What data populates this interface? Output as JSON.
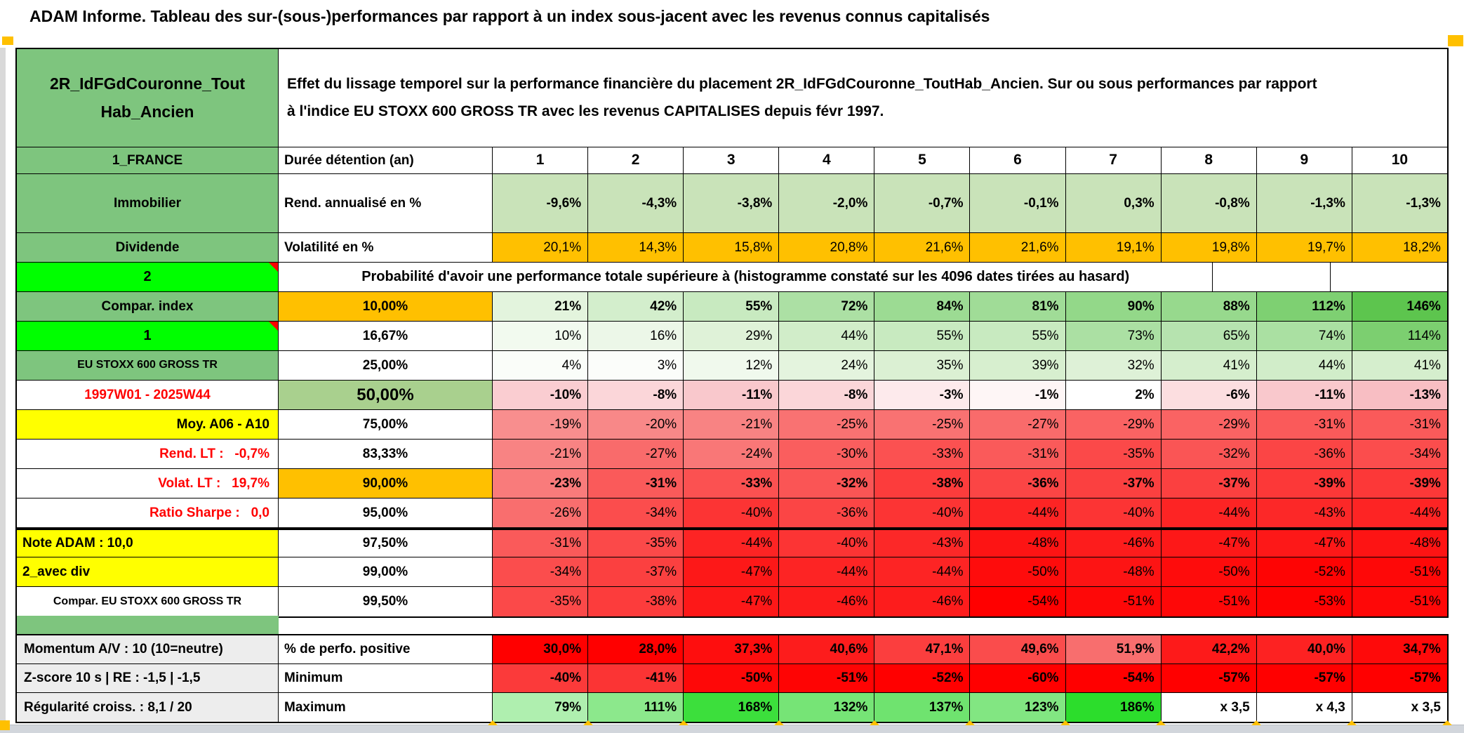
{
  "palette": {
    "header_green": "#7EC57E",
    "bright_green": "#00FF00",
    "orange": "#FFC000",
    "yellow": "#FFFF00",
    "green_50pct": "#A9D08E",
    "red_full": "#FF0000",
    "gray_label": "#EDEDED",
    "light_green_band": "#C9E3B9"
  },
  "title_bar": {
    "text": "ADAM Informe. Tableau des sur-(sous-)performances par rapport à un index sous-jacent avec les revenus connus capitalisés"
  },
  "header": {
    "name": "2R_IdFGdCouronne_ToutHab_Ancien",
    "description": "Effet du lissage temporel sur la performance financière du placement 2R_IdFGdCouronne_ToutHab_Ancien. Sur ou sous performances par rapport à l'indice EU STOXX 600 GROSS TR avec les revenus CAPITALISES depuis févr 1997."
  },
  "rows_head": {
    "label": "1_FRANCE",
    "col2": "Durée détention (an)"
  },
  "columns": [
    "1",
    "2",
    "3",
    "4",
    "5",
    "6",
    "7",
    "8",
    "9",
    "10"
  ],
  "main_rows": [
    {
      "label": "Immobilier",
      "label_class": "lab-green",
      "col2": "Rend. annualisé en %",
      "col2_class": "c2-bold-left",
      "tall": true,
      "bold": true,
      "values": [
        "-9,6%",
        "-4,3%",
        "-3,8%",
        "-2,0%",
        "-0,7%",
        "-0,1%",
        "0,3%",
        "-0,8%",
        "-1,3%",
        "-1,3%"
      ],
      "bgs": [
        "#C9E3B9",
        "#C9E3B9",
        "#C9E3B9",
        "#C9E3B9",
        "#C9E3B9",
        "#C9E3B9",
        "#C9E3B9",
        "#C9E3B9",
        "#C9E3B9",
        "#C9E3B9"
      ]
    },
    {
      "label": "Dividende",
      "label_class": "lab-green",
      "col2": "Volatilité en %",
      "col2_class": "c2-bold-left",
      "bold": false,
      "values": [
        "20,1%",
        "14,3%",
        "15,8%",
        "20,8%",
        "21,6%",
        "21,6%",
        "19,1%",
        "19,8%",
        "19,7%",
        "18,2%"
      ],
      "bgs": [
        "#FFC000",
        "#FFC000",
        "#FFC000",
        "#FFC000",
        "#FFC000",
        "#FFC000",
        "#FFC000",
        "#FFC000",
        "#FFC000",
        "#FFC000"
      ]
    },
    {
      "type": "merged",
      "label": "2",
      "label_class": "lab-bright",
      "comment_marker": true,
      "empty_tail": 2,
      "note": "Probabilité d'avoir une performance totale supérieure à (histogramme constaté sur les 4096 dates tirées au hasard)"
    },
    {
      "label": "Compar. index",
      "label_class": "lab-green",
      "col2": "10,00%",
      "col2_class": "c2-orange",
      "bold": true,
      "values": [
        "21%",
        "42%",
        "55%",
        "72%",
        "84%",
        "81%",
        "90%",
        "88%",
        "112%",
        "146%"
      ],
      "bgs": [
        "#E3F4DD",
        "#D3EECC",
        "#C8EAC0",
        "#ACE0A4",
        "#9CDB93",
        "#A0DC97",
        "#93D889",
        "#97D98D",
        "#7ED072",
        "#5DC54E"
      ]
    },
    {
      "label": "1",
      "label_class": "lab-bright",
      "comment_marker": true,
      "col2": "16,67%",
      "col2_class": "c2-center",
      "bold": false,
      "values": [
        "10%",
        "16%",
        "29%",
        "44%",
        "55%",
        "55%",
        "73%",
        "65%",
        "74%",
        "114%"
      ],
      "bgs": [
        "#F2FAEF",
        "#ECF7E8",
        "#DFF2D8",
        "#D1EDC9",
        "#C8EAC0",
        "#C8EAC0",
        "#ABE0A3",
        "#B6E3AF",
        "#AAE0A2",
        "#7CCF70"
      ]
    },
    {
      "label": "EU STOXX 600 GROSS TR",
      "label_class": "lab-green small",
      "col2": "25,00%",
      "col2_class": "c2-center",
      "bold": false,
      "values": [
        "4%",
        "3%",
        "12%",
        "24%",
        "35%",
        "39%",
        "32%",
        "41%",
        "44%",
        "41%"
      ],
      "bgs": [
        "#FAFDF9",
        "#FBFDFA",
        "#F0F9ED",
        "#E4F4DE",
        "#DBF0D3",
        "#D7EFCF",
        "#DEF1D7",
        "#D5EECD",
        "#D1EDC9",
        "#D5EECD"
      ]
    },
    {
      "label": "1997W01 - 2025W44",
      "label_class": "lab-red-center",
      "col2": "50,00%",
      "col2_class": "c2-green50",
      "bold": true,
      "values": [
        "-10%",
        "-8%",
        "-11%",
        "-8%",
        "-3%",
        "-1%",
        "2%",
        "-6%",
        "-11%",
        "-13%"
      ],
      "bgs": [
        "#FACDD1",
        "#FBD6D9",
        "#F9C8CC",
        "#FBD6D9",
        "#FDEAEC",
        "#FEF6F6",
        "#FFFFFF",
        "#FCDEE0",
        "#F9C8CC",
        "#F8BEC3"
      ]
    },
    {
      "label": "Moy. A06 - A10",
      "label_class": "lab-yellow-right",
      "col2": "75,00%",
      "col2_class": "c2-center",
      "bold": false,
      "values": [
        "-19%",
        "-20%",
        "-21%",
        "-25%",
        "-25%",
        "-27%",
        "-29%",
        "-29%",
        "-31%",
        "-31%"
      ],
      "bgs": [
        "#F88E8E",
        "#F88888",
        "#F88383",
        "#F97272",
        "#F97272",
        "#F96B6B",
        "#FA6363",
        "#FA6363",
        "#FA5A5A",
        "#FA5A5A"
      ]
    },
    {
      "label": "Rend. LT :   -0,7%",
      "label_class": "lab-red-right",
      "col2": "83,33%",
      "col2_class": "c2-center",
      "bold": false,
      "values": [
        "-21%",
        "-27%",
        "-24%",
        "-30%",
        "-33%",
        "-31%",
        "-35%",
        "-32%",
        "-36%",
        "-34%"
      ],
      "bgs": [
        "#F88383",
        "#F96B6B",
        "#F97777",
        "#FA5E5E",
        "#FB5151",
        "#FA5A5A",
        "#FB4949",
        "#FA5555",
        "#FB4545",
        "#FB4D4D"
      ]
    },
    {
      "label": "Volat. LT :   19,7%",
      "label_class": "lab-red-right",
      "col2": "90,00%",
      "col2_class": "c2-orange",
      "bold": true,
      "values": [
        "-23%",
        "-31%",
        "-33%",
        "-32%",
        "-38%",
        "-36%",
        "-37%",
        "-37%",
        "-39%",
        "-39%"
      ],
      "bgs": [
        "#F97B7B",
        "#FA5A5A",
        "#FB5151",
        "#FA5555",
        "#FC3C3C",
        "#FB4545",
        "#FB4040",
        "#FB4040",
        "#FC3838",
        "#FC3838"
      ]
    },
    {
      "label": "Ratio Sharpe :   0,0",
      "label_class": "lab-red-right",
      "col2": "95,00%",
      "col2_class": "c2-center",
      "bold": false,
      "values": [
        "-26%",
        "-34%",
        "-40%",
        "-36%",
        "-40%",
        "-44%",
        "-40%",
        "-44%",
        "-43%",
        "-44%"
      ],
      "bgs": [
        "#F96E6E",
        "#FB4D4D",
        "#FC3434",
        "#FB4545",
        "#FC3434",
        "#FD2424",
        "#FC3434",
        "#FD2424",
        "#FC2828",
        "#FD2424"
      ]
    },
    {
      "label": "Note ADAM : 10,0",
      "label_class": "lab-yellow-left",
      "col2": "97,50%",
      "col2_class": "c2-center",
      "bold": false,
      "thick_top": true,
      "values": [
        "-31%",
        "-35%",
        "-44%",
        "-40%",
        "-43%",
        "-48%",
        "-46%",
        "-47%",
        "-47%",
        "-48%"
      ],
      "bgs": [
        "#FA5A5A",
        "#FB4949",
        "#FD2424",
        "#FC3434",
        "#FC2828",
        "#FD1414",
        "#FD1C1C",
        "#FD1818",
        "#FD1818",
        "#FD1414"
      ]
    },
    {
      "label": "2_avec div",
      "label_class": "lab-yellow-left",
      "col2": "99,00%",
      "col2_class": "c2-center",
      "bold": false,
      "values": [
        "-34%",
        "-37%",
        "-47%",
        "-44%",
        "-44%",
        "-50%",
        "-48%",
        "-50%",
        "-52%",
        "-51%"
      ],
      "bgs": [
        "#FB4D4D",
        "#FB4040",
        "#FD1818",
        "#FD2424",
        "#FD2424",
        "#FE0C0C",
        "#FD1414",
        "#FE0C0C",
        "#FE0404",
        "#FE0808"
      ]
    },
    {
      "label": "Compar. EU STOXX 600 GROSS TR",
      "label_class": "lab-white-bold small",
      "col2": "99,50%",
      "col2_class": "c2-center",
      "bold": false,
      "values": [
        "-35%",
        "-38%",
        "-47%",
        "-46%",
        "-46%",
        "-54%",
        "-51%",
        "-51%",
        "-53%",
        "-51%"
      ],
      "bgs": [
        "#FB4949",
        "#FC3C3C",
        "#FD1818",
        "#FD1C1C",
        "#FD1C1C",
        "#FF0000",
        "#FE0808",
        "#FE0808",
        "#FE0202",
        "#FE0808"
      ]
    }
  ],
  "bottom_rows": [
    {
      "label": "Momentum A/V : 10 (10=neutre)",
      "label_class": "lab-gray",
      "col2": "% de perfo. positive",
      "col2_class": "c2-bold-left",
      "bold": true,
      "values": [
        "30,0%",
        "28,0%",
        "37,3%",
        "40,6%",
        "47,1%",
        "49,6%",
        "51,9%",
        "42,2%",
        "40,0%",
        "34,7%"
      ],
      "bgs": [
        "#FF0000",
        "#FF0000",
        "#FE0E0E",
        "#FD1C1C",
        "#FB3E3E",
        "#FA4C4C",
        "#F86E6E",
        "#FD1A1A",
        "#FD2222",
        "#FE0A0A"
      ]
    },
    {
      "label": "Z-score 10 s | RE : -1,5 | -1,5",
      "label_class": "lab-gray",
      "col2": "Minimum",
      "col2_class": "c2-bold-left",
      "bold": true,
      "values": [
        "-40%",
        "-41%",
        "-50%",
        "-51%",
        "-52%",
        "-60%",
        "-54%",
        "-57%",
        "-57%",
        "-57%"
      ],
      "bgs": [
        "#FB3A3A",
        "#FB3434",
        "#FE0808",
        "#FE0404",
        "#FF0000",
        "#FF0000",
        "#FF0000",
        "#FF0000",
        "#FF0000",
        "#FF0000"
      ]
    },
    {
      "label": "Régularité croiss. : 8,1 / 20",
      "label_class": "lab-gray",
      "col2": "Maximum",
      "col2_class": "c2-bold-left",
      "bold": true,
      "values": [
        "79%",
        "111%",
        "168%",
        "132%",
        "137%",
        "123%",
        "186%",
        "x 3,5",
        "x 4,3",
        "x 3,5"
      ],
      "bgs": [
        "#AFEFAF",
        "#8CE88C",
        "#3CDF3C",
        "#76E476",
        "#6FE36F",
        "#82E682",
        "#2CDD2C",
        "#FFFFFF",
        "#FFFFFF",
        "#FFFFFF"
      ]
    }
  ]
}
